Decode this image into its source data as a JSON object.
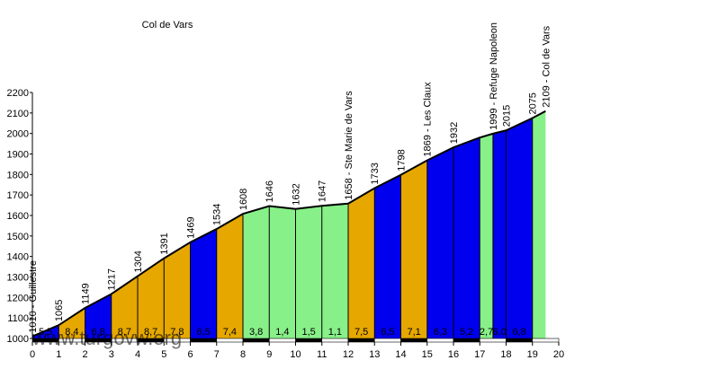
{
  "chart_data": {
    "type": "area",
    "title": "Col de Vars",
    "watermark": "www.turgovw.org",
    "xlim": [
      0,
      20
    ],
    "ylim": [
      1000,
      2200
    ],
    "x_ticks": [
      "0",
      "1",
      "2",
      "3",
      "4",
      "5",
      "6",
      "7",
      "8",
      "9",
      "10",
      "11",
      "12",
      "13",
      "14",
      "15",
      "16",
      "17",
      "18",
      "19",
      "20"
    ],
    "y_ticks": [
      "1000",
      "1100",
      "1200",
      "1300",
      "1400",
      "1500",
      "1600",
      "1700",
      "1800",
      "1900",
      "2000",
      "2100",
      "2200"
    ],
    "x": [
      0,
      1,
      2,
      3,
      4,
      5,
      6,
      7,
      8,
      9,
      10,
      11,
      12,
      13,
      14,
      15,
      16,
      17,
      17.5,
      18,
      19,
      19.5
    ],
    "y": [
      1010,
      1065,
      1149,
      1217,
      1304,
      1391,
      1469,
      1534,
      1608,
      1646,
      1632,
      1647,
      1658,
      1733,
      1798,
      1869,
      1932,
      1980,
      1999,
      2015,
      2075,
      2109
    ],
    "point_labels": [
      "1010 - Guillestre",
      "1065",
      "1149",
      "1217",
      "1304",
      "1391",
      "1469",
      "1534",
      "1608",
      "1646",
      "1632",
      "1647",
      "1658 - Ste Marie de Vars",
      "1733",
      "1798",
      "1869 - Les Claux",
      "1932",
      "",
      "1999 - Refuge Napoleon",
      "2015",
      "2075",
      "2109 - Col de Vars"
    ],
    "segment_gradients": [
      "5,5",
      "8,4",
      "6,8",
      "8,7",
      "8,7",
      "7,8",
      "6,5",
      "7,4",
      "3,8",
      "1,4",
      "1,5",
      "1,1",
      "7,5",
      "6,5",
      "7,1",
      "6,3",
      "5,2",
      "2,7",
      "6,0",
      "6,8"
    ],
    "segment_colors": [
      "#0000EE",
      "#E6A800",
      "#0000EE",
      "#E6A800",
      "#E6A800",
      "#E6A800",
      "#0000EE",
      "#E6A800",
      "#88F088",
      "#88F088",
      "#88F088",
      "#88F088",
      "#E6A800",
      "#0000EE",
      "#E6A800",
      "#0000EE",
      "#0000EE",
      "#88F088",
      "#0000EE",
      "#0000EE"
    ],
    "colors": {
      "outline": "#000000",
      "steep": "#0000EE",
      "moderate": "#E6A800",
      "gentle": "#88F088"
    }
  }
}
